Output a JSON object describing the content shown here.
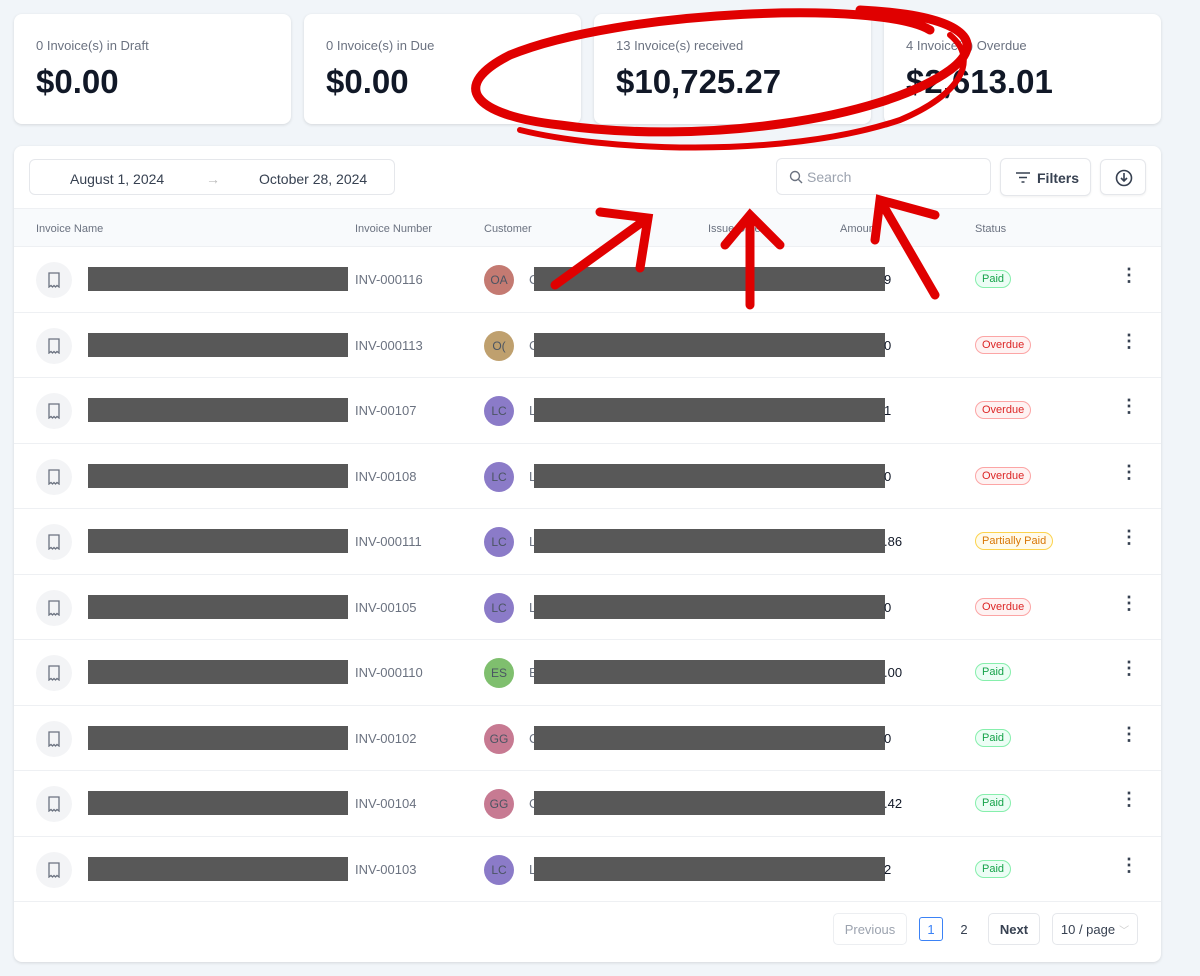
{
  "cards": [
    {
      "label": "0 Invoice(s) in Draft",
      "value": "$0.00"
    },
    {
      "label": "0 Invoice(s) in Due",
      "value": "$0.00"
    },
    {
      "label": "13 Invoice(s) received",
      "value": "$10,725.27"
    },
    {
      "label": "4 Invoice(s) Overdue",
      "value": "$2,613.01"
    }
  ],
  "toolbar": {
    "date_from": "August 1, 2024",
    "date_to": "October 28, 2024",
    "search_placeholder": "Search",
    "filters_label": "Filters",
    "download_icon": "download-circle-icon"
  },
  "columns": [
    "Invoice Name",
    "Invoice Number",
    "Customer",
    "Issue Date",
    "Amount",
    "Status"
  ],
  "rows": [
    {
      "number": "INV-000116",
      "initials": "OA",
      "cust": "C",
      "amount": "9",
      "status": "Paid"
    },
    {
      "number": "INV-000113",
      "initials": "O(",
      "cust": "C",
      "amount": "0",
      "status": "Overdue"
    },
    {
      "number": "INV-00107",
      "initials": "LC",
      "cust": "L",
      "amount": "1",
      "status": "Overdue"
    },
    {
      "number": "INV-00108",
      "initials": "LC",
      "cust": "L",
      "amount": "0",
      "status": "Overdue"
    },
    {
      "number": "INV-000111",
      "initials": "LC",
      "cust": "L",
      "amount": ".86",
      "status": "Partially Paid"
    },
    {
      "number": "INV-00105",
      "initials": "LC",
      "cust": "L",
      "amount": "0",
      "status": "Overdue"
    },
    {
      "number": "INV-000110",
      "initials": "ES",
      "cust": "E",
      "amount": ".00",
      "status": "Paid"
    },
    {
      "number": "INV-00102",
      "initials": "GG",
      "cust": "C",
      "amount": "0",
      "status": "Paid"
    },
    {
      "number": "INV-00104",
      "initials": "GG",
      "cust": "C",
      "amount": ".42",
      "status": "Paid"
    },
    {
      "number": "INV-00103",
      "initials": "LC",
      "cust": "L",
      "amount": "2",
      "status": "Paid"
    }
  ],
  "pagination": {
    "previous": "Previous",
    "pages": [
      "1",
      "2"
    ],
    "current": "1",
    "next": "Next",
    "page_size": "10 / page"
  },
  "colors": {
    "paid": "#22c55e",
    "overdue": "#ef4444",
    "partial": "#f59e0b",
    "annotation": "#e00000",
    "accent": "#3b82f6"
  }
}
